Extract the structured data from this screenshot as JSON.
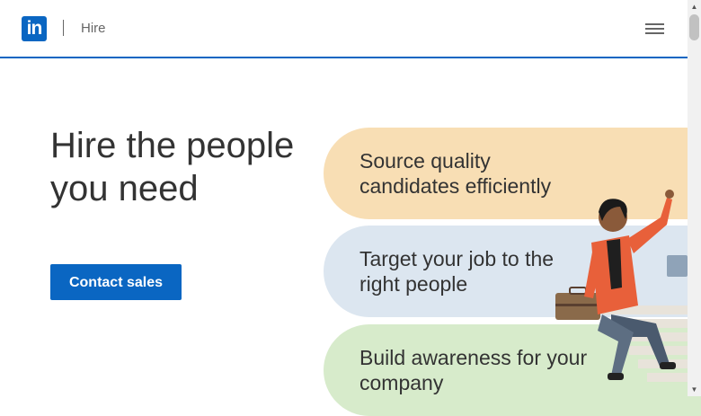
{
  "header": {
    "logo_text": "in",
    "separator": "|",
    "product": "Hire"
  },
  "hero": {
    "title": "Hire the people you need",
    "cta_label": "Contact sales"
  },
  "benefits": [
    {
      "label": "Source quality candidates efficiently"
    },
    {
      "label": "Target your job to the right people"
    },
    {
      "label": "Build awareness for your company"
    }
  ],
  "colors": {
    "brand": "#0a66c2",
    "pill1": "#f8deb4",
    "pill2": "#dce6f0",
    "pill3": "#d7ebcb"
  }
}
